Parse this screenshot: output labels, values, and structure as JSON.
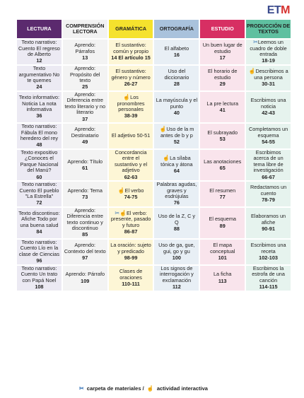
{
  "logo": {
    "e": "E",
    "t": "T",
    "m": "M"
  },
  "colors": {
    "lectura": "#5b2a6e",
    "comprension": "#f2f2f2",
    "gramatica": "#f5e22d",
    "ortografia": "#a9c2dc",
    "estudio": "#d72f63",
    "produccion": "#5fc0a0"
  },
  "headers": [
    "LECTURA",
    "COMPRENSIÓN LECTORA",
    "GRAMÁTICA",
    "ORTOGRAFÍA",
    "ESTUDIO",
    "PRODUCCIÓN DE TEXTOS"
  ],
  "rows": [
    {
      "cells": [
        {
          "text": "Texto narrativo: Cuento El regreso de Alberto",
          "page": "12"
        },
        {
          "text": "Aprendo: Párrafos",
          "page": "13"
        },
        {
          "text": "El sustantivo: común y propio",
          "page": "14 El artículo 15"
        },
        {
          "text": "El alfabeto",
          "page": "16"
        },
        {
          "text": "Un buen lugar de estudio",
          "page": "17"
        },
        {
          "icon": "scissors-icon",
          "text": "Leemos un cuadro de doble entrada",
          "page": "18-19"
        }
      ]
    },
    {
      "cells": [
        {
          "text": "Texto argumentativo No te quemes",
          "page": "24"
        },
        {
          "text": "Aprendo: Propósito del texto",
          "page": "25"
        },
        {
          "text": "El sustantivo: género y número",
          "page": "26-27"
        },
        {
          "text": "Uso del diccionario",
          "page": "28"
        },
        {
          "text": "El horario de estudio",
          "page": "29"
        },
        {
          "icon": "hand-icon",
          "text": "Describimos a una persona",
          "page": "30-31"
        }
      ]
    },
    {
      "cells": [
        {
          "text": "Texto informativo: Noticia La nota informativa",
          "page": "36"
        },
        {
          "text": "Aprendo: Diferencia entre texto literario y no literario",
          "page": "37"
        },
        {
          "icon": "hand-icon",
          "text": "Los pronombres personales",
          "page": "38-39"
        },
        {
          "text": "La mayúscula y el punto",
          "page": "40"
        },
        {
          "text": "La pre lectura",
          "page": "41"
        },
        {
          "text": "Escribimos una noticia",
          "page": "42-43"
        }
      ]
    },
    {
      "cells": [
        {
          "text": "Texto narrativo: Fábula El mono heredero del rey",
          "page": "48"
        },
        {
          "text": "Aprendo: Destinatario",
          "page": "49"
        },
        {
          "text": "El adjetivo 50-51",
          "page": ""
        },
        {
          "icon": "hand-icon",
          "text": "Uso de la m antes de b y p",
          "page": "52"
        },
        {
          "text": "El subrayado",
          "page": "53"
        },
        {
          "text": "Completamos un esquema",
          "page": "54-55"
        }
      ]
    },
    {
      "cells": [
        {
          "text": "Texto expositivo ¿Conoces el Parque Nacional del Manú?",
          "page": "60"
        },
        {
          "text": "Aprendo: Título",
          "page": "61"
        },
        {
          "text": "Concordancia entre el sustantivo y el adjetivo",
          "page": "62-63"
        },
        {
          "icon": "hand-icon",
          "text": "La sílaba tónica y átona",
          "page": "64"
        },
        {
          "text": "Las anotaciones",
          "page": "65"
        },
        {
          "text": "Escribimos acerca de un tema libre de investigación",
          "page": "66-67"
        }
      ]
    },
    {
      "cells": [
        {
          "text": "Texto narrativo: Cuento El pueblo \"La Estrella\"",
          "page": "72"
        },
        {
          "text": "Aprendo: Tema",
          "page": "73"
        },
        {
          "icon": "hand-icon",
          "text": "El verbo",
          "page": "74-75"
        },
        {
          "text": "Palabras agudas, graves y esdrújulas",
          "page": "76"
        },
        {
          "text": "El resumen",
          "page": "77"
        },
        {
          "text": "Redactamos un cuento",
          "page": "78-79"
        }
      ]
    },
    {
      "cells": [
        {
          "text": "Texto discontinuo: Afiche Todo por una buena salud",
          "page": "84"
        },
        {
          "text": "Aprendo: Diferencia entre texto continuo y discontinuo",
          "page": "85"
        },
        {
          "icon": "both-icons",
          "text": "El verbo: presente, pasado y futuro",
          "page": "86-87"
        },
        {
          "text": "Uso de la Z, C y Q",
          "page": "88"
        },
        {
          "text": "El esquema",
          "page": "89"
        },
        {
          "text": "Elaboramos un afiche",
          "page": "90-91"
        }
      ]
    },
    {
      "cells": [
        {
          "text": "Texto narrativo: Cuento Lío en la clase de Ciencias",
          "page": "96"
        },
        {
          "text": "Aprendo: Contexto del texto",
          "page": "97"
        },
        {
          "text": "La oración: sujeto y predicado",
          "page": "98-99"
        },
        {
          "text": "Uso de ga, gue, gui, go y gu",
          "page": "100"
        },
        {
          "text": "El mapa conceptual",
          "page": "101"
        },
        {
          "text": "Escribimos una receta",
          "page": "102-103"
        }
      ]
    },
    {
      "cells": [
        {
          "text": "Texto narrativo: Cuento Un trato con Papá Noel",
          "page": "108"
        },
        {
          "text": "Aprendo: Párrafo",
          "page": "109"
        },
        {
          "text": "Clases de oraciones",
          "page": "110-111"
        },
        {
          "text": "Los signos de interrogación y exclamación",
          "page": "112"
        },
        {
          "text": "La ficha",
          "page": "113"
        },
        {
          "text": "Escribimos la estrofa de una canción",
          "page": "114-115"
        }
      ]
    }
  ],
  "legend": {
    "materials_icon": "scissors-icon",
    "materials_label": "carpeta de materiales /",
    "interactive_icon": "hand-icon",
    "interactive_label": "actividad interactiva"
  }
}
